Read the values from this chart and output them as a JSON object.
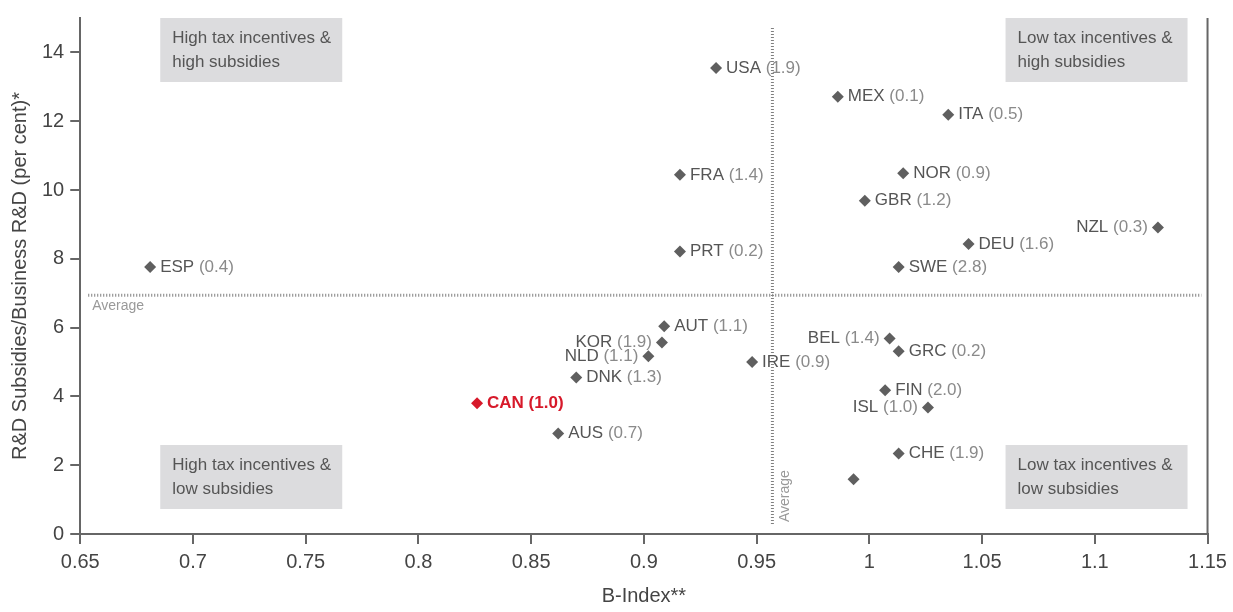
{
  "chart_data": {
    "type": "scatter",
    "xlabel": "B-Index**",
    "ylabel": "R&D Subsidies/Business R&D (per cent)*",
    "x": [
      0.681,
      0.932,
      0.916,
      0.916,
      0.986,
      1.035,
      1.015,
      0.998,
      1.128,
      1.044,
      1.013,
      0.909,
      0.908,
      0.902,
      0.948,
      0.87,
      0.826,
      0.862,
      1.009,
      1.013,
      1.007,
      1.026,
      1.013,
      0.993
    ],
    "values": [
      7.76,
      13.55,
      10.44,
      8.21,
      12.71,
      12.19,
      10.49,
      9.69,
      8.91,
      8.43,
      7.76,
      6.04,
      5.57,
      5.17,
      5.0,
      4.55,
      3.8,
      2.92,
      5.68,
      5.31,
      4.18,
      3.68,
      2.34,
      1.59
    ],
    "colors": [
      "#5f5f5f",
      "#5f5f5f",
      "#5f5f5f",
      "#5f5f5f",
      "#5f5f5f",
      "#5f5f5f",
      "#5f5f5f",
      "#5f5f5f",
      "#5f5f5f",
      "#5f5f5f",
      "#5f5f5f",
      "#5f5f5f",
      "#5f5f5f",
      "#5f5f5f",
      "#5f5f5f",
      "#5f5f5f",
      "#d7192a",
      "#5f5f5f",
      "#5f5f5f",
      "#5f5f5f",
      "#5f5f5f",
      "#5f5f5f",
      "#5f5f5f",
      "#5f5f5f"
    ],
    "marker": "diamond",
    "xlim": [
      0.65,
      1.15
    ],
    "xticks": [
      0.65,
      0.7,
      0.75,
      0.8,
      0.85,
      0.9,
      0.95,
      1,
      1.05,
      1.1,
      1.15
    ],
    "ylim": [
      0,
      15
    ],
    "yticks": [
      0,
      2,
      4,
      6,
      8,
      10,
      12,
      14
    ],
    "ref_lines": [
      {
        "axis": "y",
        "value": 6.94,
        "label": "Average",
        "color": "#808080",
        "line_style": "dotted"
      },
      {
        "axis": "x",
        "value": 0.957,
        "label": "Average",
        "color": "#808080",
        "line_style": "dotted"
      }
    ],
    "annotations": [
      "High tax incentives & high subsidies",
      "Low tax incentives & high subsidies",
      "High tax incentives & low subsidies",
      "Low tax incentives & low subsidies",
      {
        "text": "ESP (0.4)",
        "x": 0.681,
        "y": 7.76
      },
      {
        "text": "USA (1.9)",
        "x": 0.932,
        "y": 13.55
      },
      {
        "text": "FRA (1.4)",
        "x": 0.916,
        "y": 10.44
      },
      {
        "text": "PRT (0.2)",
        "x": 0.916,
        "y": 8.21
      },
      {
        "text": "MEX (0.1)",
        "x": 0.986,
        "y": 12.71
      },
      {
        "text": "ITA (0.5)",
        "x": 1.035,
        "y": 12.19
      },
      {
        "text": "NOR (0.9)",
        "x": 1.015,
        "y": 10.49
      },
      {
        "text": "GBR (1.2)",
        "x": 0.998,
        "y": 9.69
      },
      {
        "text": "NZL (0.3)",
        "x": 1.128,
        "y": 8.91
      },
      {
        "text": "DEU (1.6)",
        "x": 1.044,
        "y": 8.43
      },
      {
        "text": "SWE (2.8)",
        "x": 1.013,
        "y": 7.76
      },
      {
        "text": "AUT (1.1)",
        "x": 0.909,
        "y": 6.04
      },
      {
        "text": "KOR (1.9)",
        "x": 0.908,
        "y": 5.57
      },
      {
        "text": "NLD (1.1)",
        "x": 0.902,
        "y": 5.17
      },
      {
        "text": "IRE (0.9)",
        "x": 0.948,
        "y": 5.0
      },
      {
        "text": "DNK (1.3)",
        "x": 0.87,
        "y": 4.55
      },
      {
        "text": "CAN (1.0)",
        "x": 0.826,
        "y": 3.8
      },
      {
        "text": "AUS (0.7)",
        "x": 0.862,
        "y": 2.92
      },
      {
        "text": "BEL (1.4)",
        "x": 1.009,
        "y": 5.68
      },
      {
        "text": "GRC (0.2)",
        "x": 1.013,
        "y": 5.31
      },
      {
        "text": "FIN (2.0)",
        "x": 1.007,
        "y": 4.18
      },
      {
        "text": "ISL (1.0)",
        "x": 1.026,
        "y": 3.68
      },
      {
        "text": "CHE (1.9)",
        "x": 1.013,
        "y": 2.34
      }
    ],
    "grid": false,
    "legend": false
  }
}
